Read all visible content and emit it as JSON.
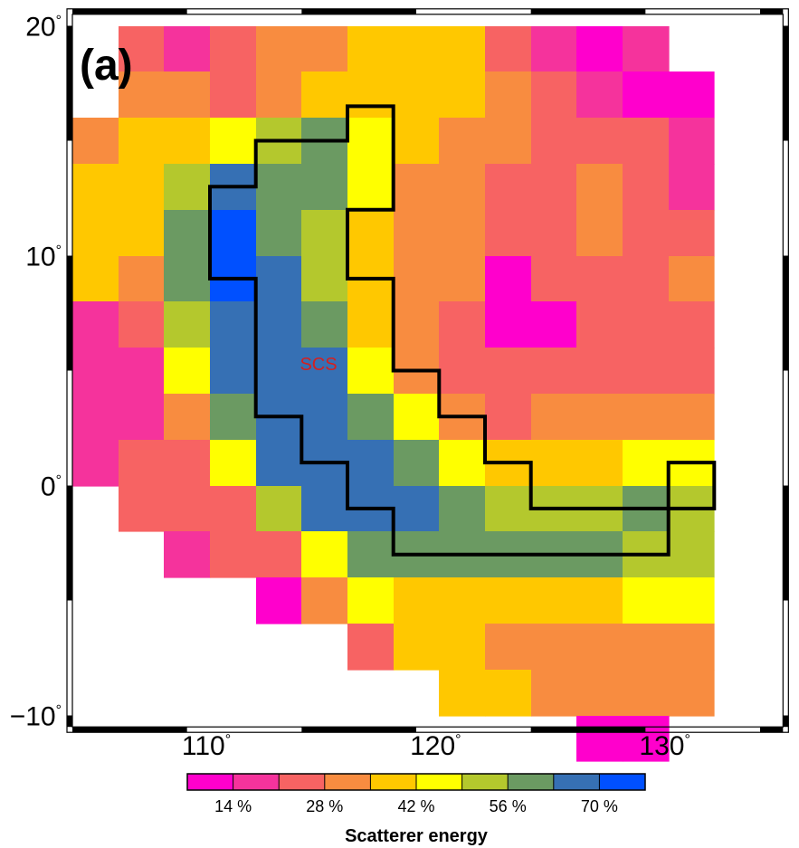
{
  "panel_label": "(a)",
  "region_label": "SCS",
  "x_ticks": [
    {
      "label": "110",
      "deg": "°",
      "lon": 110
    },
    {
      "label": "120",
      "deg": "°",
      "lon": 120
    },
    {
      "label": "130",
      "deg": "°",
      "lon": 130
    }
  ],
  "y_ticks": [
    {
      "label": "20",
      "deg": "°",
      "lat": 20
    },
    {
      "label": "10",
      "deg": "°",
      "lat": 10
    },
    {
      "label": "0",
      "deg": "°",
      "lat": 0
    },
    {
      "label": "−10",
      "deg": "°",
      "lat": -10
    }
  ],
  "colorbar": {
    "title": "Scatterer energy",
    "colors": [
      "#ff00cc",
      "#f5339c",
      "#f76363",
      "#f88c40",
      "#ffc800",
      "#ffff00",
      "#b4c82d",
      "#6b9a62",
      "#3670b4",
      "#0050ff"
    ],
    "labels": [
      "14 %",
      "28 %",
      "42 %",
      "56 %",
      "70 %"
    ]
  },
  "chart_data": {
    "type": "heatmap",
    "title": "",
    "xlabel": "",
    "ylabel": "",
    "cell_size_deg": 2,
    "lon_cells_start": [
      104,
      106,
      108,
      110,
      112,
      114,
      116,
      118,
      120,
      122,
      124,
      126,
      128,
      130,
      132
    ],
    "lat_cells_top": [
      20,
      18,
      16,
      14,
      12,
      10,
      8,
      6,
      4,
      2,
      0,
      -2,
      -4,
      -6,
      -8,
      -10
    ],
    "palette_classes": [
      "#ff00cc",
      "#f5339c",
      "#f76363",
      "#f88c40",
      "#ffc800",
      "#ffff00",
      "#b4c82d",
      "#6b9a62",
      "#3670b4",
      "#0050ff"
    ],
    "class_grid": [
      [
        -1,
        2,
        1,
        2,
        3,
        3,
        4,
        4,
        4,
        2,
        1,
        0,
        1,
        -1,
        -1
      ],
      [
        -1,
        3,
        3,
        2,
        3,
        4,
        4,
        4,
        4,
        3,
        2,
        1,
        0,
        0,
        -1
      ],
      [
        3,
        4,
        4,
        5,
        6,
        7,
        5,
        4,
        3,
        3,
        2,
        2,
        2,
        1,
        -1
      ],
      [
        4,
        4,
        6,
        8,
        7,
        7,
        5,
        3,
        3,
        2,
        2,
        3,
        2,
        1,
        -1
      ],
      [
        4,
        4,
        7,
        9,
        7,
        6,
        4,
        3,
        3,
        2,
        2,
        3,
        2,
        2,
        -1
      ],
      [
        4,
        3,
        7,
        9,
        8,
        6,
        4,
        3,
        3,
        0,
        2,
        2,
        2,
        3,
        -1
      ],
      [
        1,
        2,
        6,
        8,
        8,
        7,
        4,
        3,
        2,
        0,
        0,
        2,
        2,
        2,
        -1
      ],
      [
        1,
        1,
        5,
        8,
        8,
        8,
        5,
        3,
        2,
        2,
        2,
        2,
        2,
        2,
        -1
      ],
      [
        1,
        1,
        3,
        7,
        8,
        8,
        7,
        5,
        3,
        2,
        3,
        3,
        3,
        3,
        -1
      ],
      [
        1,
        2,
        2,
        5,
        8,
        8,
        8,
        7,
        5,
        4,
        4,
        4,
        5,
        5,
        -1
      ],
      [
        -1,
        2,
        2,
        2,
        6,
        8,
        8,
        8,
        7,
        6,
        6,
        6,
        7,
        6,
        -1
      ],
      [
        -1,
        -1,
        1,
        2,
        2,
        5,
        7,
        7,
        7,
        7,
        7,
        7,
        6,
        6,
        -1
      ],
      [
        -1,
        -1,
        -1,
        -1,
        0,
        3,
        5,
        4,
        4,
        4,
        4,
        4,
        5,
        5,
        -1
      ],
      [
        -1,
        -1,
        -1,
        -1,
        -1,
        -1,
        2,
        4,
        4,
        3,
        3,
        3,
        3,
        3,
        -1
      ],
      [
        -1,
        -1,
        -1,
        -1,
        -1,
        -1,
        -1,
        -1,
        4,
        4,
        3,
        3,
        3,
        3,
        -1
      ],
      [
        -1,
        -1,
        -1,
        -1,
        -1,
        -1,
        -1,
        -1,
        -1,
        -1,
        -1,
        0,
        0,
        -1,
        -1
      ]
    ],
    "outline_lonlat": [
      [
        116,
        16.5
      ],
      [
        118,
        16.5
      ],
      [
        118,
        12
      ],
      [
        116,
        12
      ],
      [
        116,
        9
      ],
      [
        118,
        9
      ],
      [
        118,
        5
      ],
      [
        120,
        5
      ],
      [
        120,
        3
      ],
      [
        122,
        3
      ],
      [
        122,
        1
      ],
      [
        124,
        1
      ],
      [
        124,
        -1
      ],
      [
        130,
        -1
      ],
      [
        130,
        1
      ],
      [
        132,
        1
      ],
      [
        132,
        -1
      ],
      [
        130,
        -1
      ],
      [
        130,
        -3
      ],
      [
        118,
        -3
      ],
      [
        118,
        -1
      ],
      [
        116,
        -1
      ],
      [
        116,
        1
      ],
      [
        114,
        1
      ],
      [
        114,
        3
      ],
      [
        112,
        3
      ],
      [
        112,
        9
      ],
      [
        110,
        9
      ],
      [
        110,
        13
      ],
      [
        112,
        13
      ],
      [
        112,
        15
      ],
      [
        116,
        15
      ]
    ],
    "axes": {
      "lon_range": [
        104,
        135
      ],
      "lat_range": [
        -10.5,
        20.5
      ]
    }
  }
}
